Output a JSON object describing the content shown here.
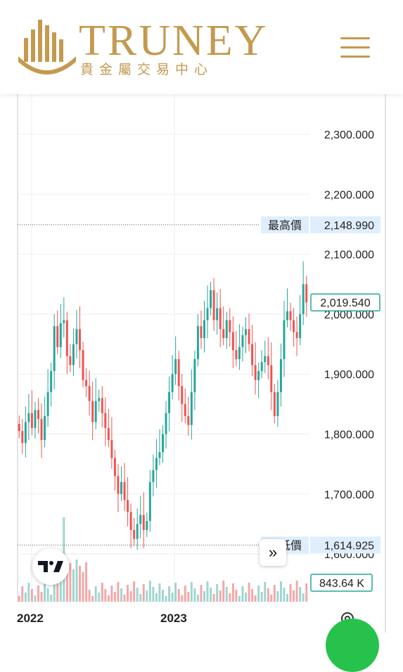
{
  "brand": {
    "name": "TRUNEY",
    "subtitle": "貴金屬交易中心",
    "color": "#c39a4f"
  },
  "header": {
    "menu_icon": "hamburger-icon"
  },
  "chart_data": {
    "type": "candlestick",
    "price_axis": {
      "ticks": [
        "2,300.000",
        "2,200.000",
        "2,100.000",
        "2,000.000",
        "1,900.000",
        "1,800.000",
        "1,700.000",
        "1,600.000"
      ],
      "ylim": [
        1585,
        2340
      ]
    },
    "time_axis": {
      "ticks": [
        "2022",
        "2023"
      ]
    },
    "markers": {
      "high": {
        "label": "最高價",
        "value": "2,148.990"
      },
      "low": {
        "label": "最低價",
        "value": "1,614.925"
      },
      "last": {
        "value": "2,019.540"
      },
      "volume": {
        "value": "843.64 K"
      }
    },
    "colors": {
      "up": "#26a69a",
      "down": "#ef5350",
      "up_volume": "#9fd5d0",
      "down_volume": "#f3a7a6",
      "label_bg": "#dfeefd"
    },
    "closes": [
      1805,
      1785,
      1820,
      1835,
      1810,
      1840,
      1825,
      1790,
      1830,
      1870,
      1905,
      1980,
      1945,
      1985,
      1990,
      1930,
      1915,
      1950,
      1975,
      1940,
      1890,
      1880,
      1855,
      1820,
      1855,
      1860,
      1835,
      1810,
      1790,
      1760,
      1730,
      1700,
      1720,
      1690,
      1670,
      1640,
      1625,
      1650,
      1665,
      1640,
      1655,
      1720,
      1740,
      1760,
      1770,
      1800,
      1835,
      1870,
      1900,
      1925,
      1880,
      1850,
      1830,
      1815,
      1870,
      1925,
      1980,
      1960,
      1990,
      2010,
      2040,
      1990,
      2010,
      1975,
      1960,
      1990,
      1970,
      1940,
      1925,
      1945,
      1965,
      1975,
      1950,
      1915,
      1890,
      1905,
      1920,
      1930,
      1915,
      1870,
      1830,
      1870,
      1925,
      1990,
      2005,
      1990,
      1970,
      1960,
      2000,
      2050,
      2019.54
    ]
  },
  "buttons": {
    "scroll_label": "»"
  },
  "icons": {
    "tradingview": "tradingview-logo-icon",
    "settings": "settings-gear-icon",
    "fab": "chat-fab-icon"
  }
}
